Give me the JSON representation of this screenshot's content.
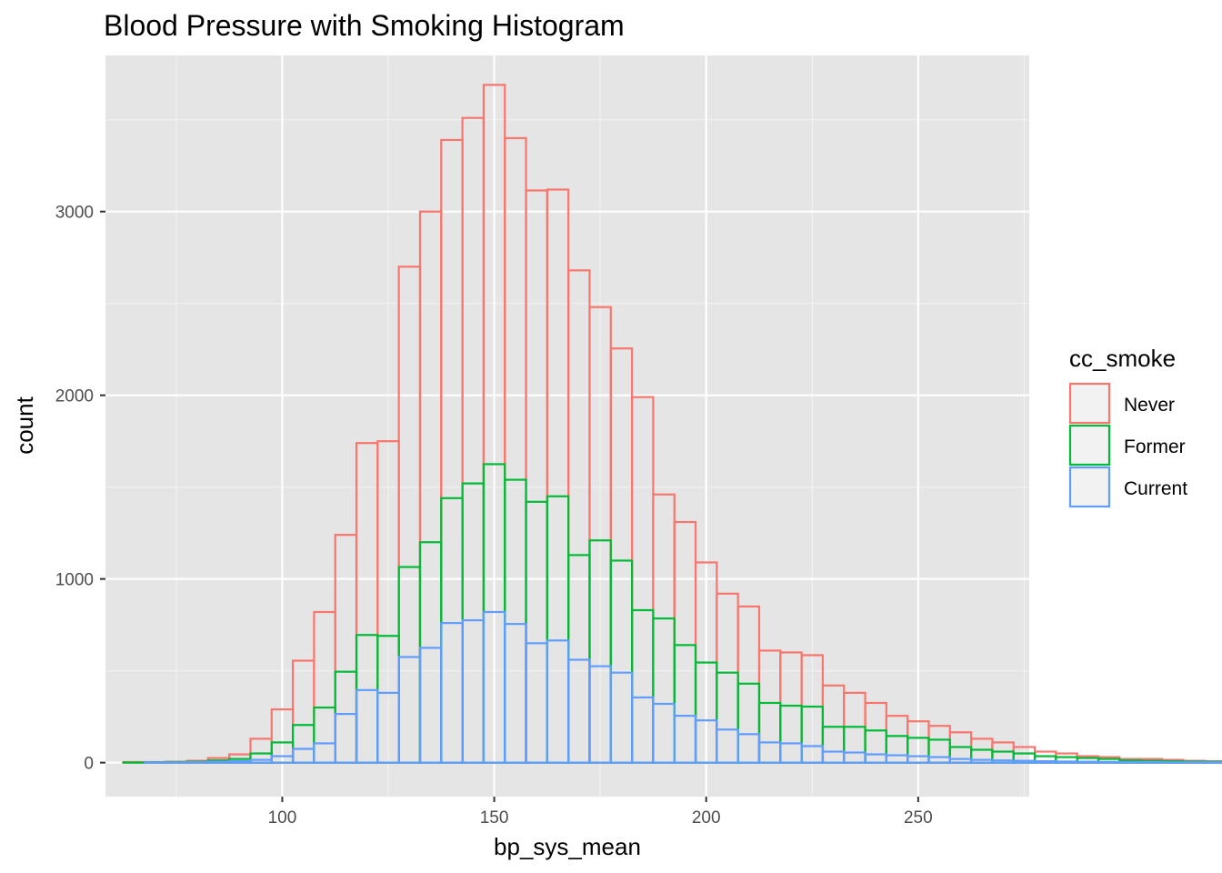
{
  "chart_data": {
    "type": "histogram",
    "title": "Blood Pressure with Smoking Histogram",
    "xlabel": "bp_sys_mean",
    "ylabel": "count",
    "xlim": [
      58.3,
      276.2
    ],
    "ylim": [
      -185,
      3850
    ],
    "x_ticks": [
      100,
      150,
      200,
      250
    ],
    "y_ticks": [
      0,
      1000,
      2000,
      3000
    ],
    "x_tick_labels": [
      "100",
      "150",
      "200",
      "250"
    ],
    "y_tick_labels": [
      "0",
      "1000",
      "2000",
      "3000"
    ],
    "bin_width": 5,
    "bin_start": 62.5,
    "stacked": true,
    "background_color": "#e5e5e5",
    "grid": true,
    "legend": {
      "title": "cc_smoke",
      "position": "right",
      "entries": [
        "Never",
        "Former",
        "Current"
      ]
    },
    "series": [
      {
        "name": "Never",
        "color": "#f8766d",
        "cumulative_values": [
          3,
          3,
          5,
          10,
          25,
          45,
          130,
          290,
          555,
          820,
          1240,
          1740,
          1750,
          2700,
          3000,
          3390,
          3510,
          3690,
          3400,
          3115,
          3120,
          2680,
          2480,
          2255,
          1990,
          1460,
          1310,
          1090,
          920,
          850,
          610,
          600,
          585,
          420,
          380,
          325,
          255,
          225,
          200,
          165,
          130,
          110,
          85,
          60,
          50,
          35,
          30,
          20,
          20,
          15,
          10,
          8,
          6,
          5,
          4,
          4,
          3,
          3,
          3,
          3,
          3,
          3,
          3,
          3,
          3,
          3,
          3,
          3,
          3,
          3,
          3,
          3,
          3
        ]
      },
      {
        "name": "Former",
        "color": "#00ba38",
        "cumulative_values": [
          1,
          2,
          3,
          5,
          12,
          20,
          50,
          110,
          205,
          300,
          495,
          695,
          690,
          1065,
          1200,
          1440,
          1520,
          1625,
          1540,
          1420,
          1450,
          1130,
          1210,
          1100,
          830,
          785,
          640,
          545,
          490,
          430,
          325,
          310,
          305,
          195,
          195,
          175,
          145,
          135,
          125,
          85,
          70,
          60,
          50,
          35,
          30,
          25,
          20,
          12,
          10,
          8,
          6,
          5,
          4,
          3,
          3,
          3,
          3,
          3,
          3,
          3,
          3,
          3,
          3,
          3,
          3,
          3,
          3,
          3,
          3,
          3,
          3,
          3,
          3
        ]
      },
      {
        "name": "Current",
        "color": "#619cff",
        "cumulative_values": [
          0,
          1,
          1,
          2,
          5,
          8,
          15,
          35,
          75,
          105,
          265,
          395,
          380,
          575,
          625,
          760,
          775,
          820,
          755,
          650,
          665,
          560,
          525,
          490,
          355,
          320,
          255,
          230,
          180,
          155,
          110,
          105,
          90,
          60,
          55,
          45,
          40,
          35,
          30,
          20,
          15,
          12,
          10,
          8,
          6,
          5,
          4,
          3,
          3,
          2,
          2,
          2,
          1,
          1,
          1,
          1,
          1,
          1,
          1,
          1,
          1,
          1,
          1,
          1,
          1,
          1,
          1,
          1,
          1,
          1,
          1,
          1,
          1
        ]
      }
    ]
  }
}
